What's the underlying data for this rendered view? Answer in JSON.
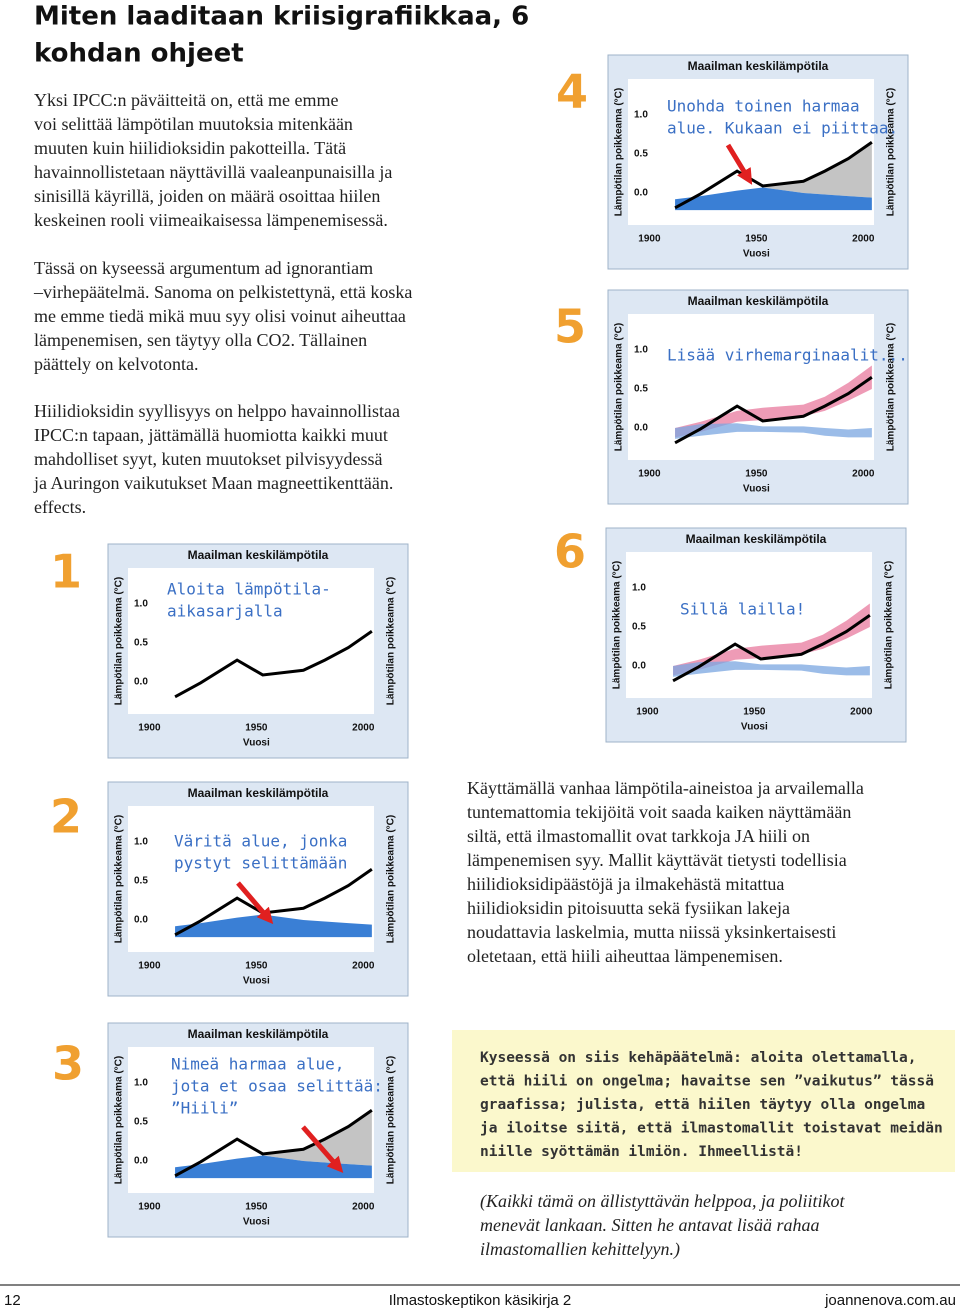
{
  "title": [
    "Miten laaditaan kriisigrafiikkaa, 6",
    "kohdan ohjeet"
  ],
  "paragraphs": [
    [
      "Yksi IPCC:n päväitteitä on, että me emme",
      "voi selittää lämpötilan muutoksia mitenkään",
      "muuten kuin hiilidioksidin pakotteilla. Tätä",
      "havainnollistetaan näyttävillä vaaleanpunaisilla ja",
      "sinisillä käyrillä, joiden on määrä osoittaa hiilen",
      "keskeinen rooli viimeaikaisessa lämpenemisessä."
    ],
    [
      "Tässä on kyseessä argumentum ad ignorantiam",
      "–virhepäätelmä. Sanoma on pelkistettynä, että koska",
      "me emme tiedä mikä muu syy olisi voinut aiheuttaa",
      "lämpenemisen, sen täytyy olla CO2. Tällainen",
      "päättely on kelvotonta."
    ],
    [
      "Hiilidioksidin syyllisyys on helppo havainnollistaa",
      "IPCC:n tapaan, jättämällä huomiotta kaikki muut",
      "mahdolliset syyt, kuten muutokset pilvisyydessä",
      "ja Auringon vaikutukset Maan magneettikenttään.",
      "effects."
    ],
    [
      "Käyttämällä vanhaa lämpötila-aineistoa ja arvailemalla",
      "tuntemattomia tekijöitä voit saada kaiken näyttämään",
      "siltä, että ilmastomallit ovat tarkkoja JA hiili on",
      "lämpenemisen syy. Mallit käyttävät tietysti todellisia",
      "hiilidioksidipäästöjä ja ilmakehästä mitattua",
      "hiilidioksidin pitoisuutta sekä fysiikan lakeja",
      "noudattavia laskelmia, mutta niissä yksinkertaisesti",
      "oletetaan, että hiili aiheuttaa lämpenemisen."
    ]
  ],
  "box": [
    "Kyseessä on siis kehäpäätelmä: aloita olettamalla,",
    "että hiili on ongelma; havaitse sen ”vaikutus” tässä",
    "graafissa; julista, että hiilen täytyy olla ongelma",
    "ja iloitse siitä, että ilmastomallit toistavat meidän",
    "niille syöttämän ilmiön. Ihmeellistä!"
  ],
  "note": [
    "(Kaikki tämä on ällistyttävän helppoa, ja poliitikot",
    "menevät lankaan. Sitten he antavat lisää rahaa",
    "ilmastomallien kehittelyyn.)"
  ],
  "panel_numbers": [
    "1",
    "2",
    "3",
    "4",
    "5",
    "6"
  ],
  "footer": {
    "page": "12",
    "book": "Ilmastoskeptikon käsikirja 2",
    "site": "joannenova.com.au"
  },
  "chart_data": [
    {
      "type": "line",
      "title": "Maailman keskilämpötila",
      "ylabel": "Lämpötilan poikkeama (°C)",
      "y2label": "Lämpötilan poikkeama (°C)",
      "xlabel": "Vuosi",
      "annotation": [
        "Aloita lämpötila-",
        "aikasarjalla"
      ],
      "x": [
        1912,
        1924,
        1941,
        1953,
        1972,
        1982,
        1993,
        2004
      ],
      "series": [
        {
          "color": "#000000",
          "values": [
            -0.19,
            -0.01,
            0.28,
            0.09,
            0.15,
            0.28,
            0.44,
            0.65
          ]
        }
      ],
      "bands": [],
      "xlim": [
        1890,
        2005
      ],
      "ylim": [
        -0.41,
        1.46
      ],
      "xticks": [
        1900,
        1950,
        2000
      ],
      "yticks": [
        {
          "value": 0,
          "label": "0.0"
        },
        0.5,
        {
          "value": 1,
          "label": "1.0"
        }
      ]
    },
    {
      "type": "line",
      "title": "Maailman keskilämpötila",
      "ylabel": "Lämpötilan poikkeama (°C)",
      "y2label": "Lämpötilan poikkeama (°C)",
      "xlabel": "Vuosi",
      "annotation": [
        "Väritä alue, jonka",
        "pystyt selittämään"
      ],
      "x": [
        1912,
        1924,
        1941,
        1953,
        1972,
        1982,
        1993,
        2004
      ],
      "series": [
        {
          "color": "#000000",
          "values": [
            -0.19,
            -0.01,
            0.28,
            0.09,
            0.15,
            0.28,
            0.44,
            0.65
          ]
        }
      ],
      "bands": [
        {
          "color": "#3a7fd5",
          "lower": [
            -0.22,
            -0.22,
            -0.22,
            -0.22,
            -0.22,
            -0.22,
            -0.22,
            -0.22
          ],
          "upper": [
            -0.08,
            -0.04,
            0.03,
            0.07,
            0.0,
            -0.02,
            -0.04,
            -0.06
          ]
        }
      ],
      "xlim": [
        1890,
        2005
      ],
      "ylim": [
        -0.41,
        1.46
      ],
      "xticks": [
        1900,
        1950,
        2000
      ],
      "yticks": [
        {
          "value": 0,
          "label": "0.0"
        },
        0.5,
        {
          "value": 1,
          "label": "1.0"
        }
      ]
    },
    {
      "type": "line",
      "title": "Maailman keskilämpötila",
      "ylabel": "Lämpötilan poikkeama (°C)",
      "y2label": "Lämpötilan poikkeama (°C)",
      "xlabel": "Vuosi",
      "annotation": [
        "Nimeä harmaa alue,",
        "jota et osaa selittää:",
        "”Hiili”"
      ],
      "x": [
        1912,
        1924,
        1941,
        1953,
        1972,
        1982,
        1993,
        2004
      ],
      "series": [
        {
          "color": "#000000",
          "values": [
            -0.19,
            -0.01,
            0.28,
            0.09,
            0.15,
            0.28,
            0.44,
            0.65
          ]
        }
      ],
      "bands": [
        {
          "color": "#c4c4c4",
          "lower": [
            null,
            null,
            null,
            0.07,
            0.0,
            -0.02,
            -0.04,
            -0.06
          ],
          "upper": [
            null,
            null,
            null,
            0.09,
            0.15,
            0.28,
            0.44,
            0.65
          ]
        },
        {
          "color": "#3a7fd5",
          "lower": [
            -0.22,
            -0.22,
            -0.22,
            -0.22,
            -0.22,
            -0.22,
            -0.22,
            -0.22
          ],
          "upper": [
            -0.08,
            -0.04,
            0.03,
            0.07,
            0.0,
            -0.02,
            -0.04,
            -0.06
          ]
        }
      ],
      "xlim": [
        1890,
        2005
      ],
      "ylim": [
        -0.41,
        1.46
      ],
      "xticks": [
        1900,
        1950,
        2000
      ],
      "yticks": [
        {
          "value": 0,
          "label": "0.0"
        },
        0.5,
        {
          "value": 1,
          "label": "1.0"
        }
      ]
    },
    {
      "type": "line",
      "title": "Maailman keskilämpötila",
      "ylabel": "Lämpötilan poikkeama (°C)",
      "y2label": "Lämpötilan poikkeama (°C)",
      "xlabel": "Vuosi",
      "annotation": [
        "Unohda toinen harmaa",
        "alue. Kukaan ei piittaa."
      ],
      "x": [
        1912,
        1924,
        1941,
        1953,
        1972,
        1982,
        1993,
        2004
      ],
      "series": [
        {
          "color": "#000000",
          "values": [
            -0.19,
            -0.01,
            0.28,
            0.09,
            0.15,
            0.28,
            0.44,
            0.65
          ]
        }
      ],
      "bands": [
        {
          "color": "#c4c4c4",
          "lower": [
            null,
            null,
            null,
            0.07,
            0.0,
            -0.02,
            -0.04,
            -0.06
          ],
          "upper": [
            null,
            null,
            null,
            0.09,
            0.15,
            0.28,
            0.44,
            0.65
          ]
        },
        {
          "color": "#3a7fd5",
          "lower": [
            -0.22,
            -0.22,
            -0.22,
            -0.22,
            -0.22,
            -0.22,
            -0.22,
            -0.22
          ],
          "upper": [
            -0.08,
            -0.04,
            0.03,
            0.07,
            0.0,
            -0.02,
            -0.04,
            -0.06
          ]
        }
      ],
      "xlim": [
        1890,
        2005
      ],
      "ylim": [
        -0.41,
        1.46
      ],
      "xticks": [
        1900,
        1950,
        2000
      ],
      "yticks": [
        {
          "value": 0,
          "label": "0.0"
        },
        0.5,
        {
          "value": 1,
          "label": "1.0"
        }
      ]
    },
    {
      "type": "line",
      "title": "Maailman keskilämpötila",
      "ylabel": "Lämpötilan poikkeama (°C)",
      "y2label": "Lämpötilan poikkeama (°C)",
      "xlabel": "Vuosi",
      "annotation": [
        "Lisää virhemarginaalit..."
      ],
      "x": [
        1912,
        1924,
        1941,
        1953,
        1972,
        1982,
        1993,
        2004
      ],
      "series": [
        {
          "color": "#000000",
          "values": [
            -0.19,
            -0.01,
            0.28,
            0.09,
            0.15,
            0.28,
            0.44,
            0.65
          ]
        }
      ],
      "bands": [
        {
          "color": "#e8799e",
          "lower": [
            -0.12,
            -0.05,
            0.08,
            0.1,
            0.15,
            0.22,
            0.35,
            0.5
          ],
          "upper": [
            0.0,
            0.08,
            0.22,
            0.26,
            0.3,
            0.4,
            0.58,
            0.8
          ]
        },
        {
          "color": "#7aa6e0",
          "lower": [
            -0.14,
            -0.1,
            -0.05,
            -0.05,
            -0.06,
            -0.1,
            -0.12,
            -0.12
          ],
          "upper": [
            0.0,
            0.05,
            0.06,
            0.02,
            0.02,
            0.0,
            -0.02,
            0.0
          ]
        }
      ],
      "xlim": [
        1890,
        2005
      ],
      "ylim": [
        -0.41,
        1.46
      ],
      "xticks": [
        1900,
        1950,
        2000
      ],
      "yticks": [
        {
          "value": 0,
          "label": "0.0"
        },
        0.5,
        {
          "value": 1,
          "label": "1.0"
        }
      ]
    },
    {
      "type": "line",
      "title": "Maailman keskilämpötila",
      "ylabel": "Lämpötilan poikkeama (°C)",
      "y2label": "Lämpötilan poikkeama (°C)",
      "xlabel": "Vuosi",
      "annotation": [
        "Sillä lailla!"
      ],
      "x": [
        1912,
        1924,
        1941,
        1953,
        1972,
        1982,
        1993,
        2004
      ],
      "series": [
        {
          "color": "#000000",
          "values": [
            -0.19,
            -0.01,
            0.28,
            0.09,
            0.15,
            0.28,
            0.44,
            0.65
          ]
        }
      ],
      "bands": [
        {
          "color": "#e8799e",
          "lower": [
            -0.12,
            -0.05,
            0.08,
            0.1,
            0.15,
            0.22,
            0.35,
            0.5
          ],
          "upper": [
            0.0,
            0.08,
            0.22,
            0.26,
            0.3,
            0.4,
            0.58,
            0.8
          ]
        },
        {
          "color": "#7aa6e0",
          "lower": [
            -0.14,
            -0.1,
            -0.05,
            -0.05,
            -0.06,
            -0.1,
            -0.12,
            -0.12
          ],
          "upper": [
            0.0,
            0.05,
            0.06,
            0.02,
            0.02,
            0.0,
            -0.02,
            0.0
          ]
        }
      ],
      "xlim": [
        1890,
        2005
      ],
      "ylim": [
        -0.41,
        1.46
      ],
      "xticks": [
        1900,
        1950,
        2000
      ],
      "yticks": [
        {
          "value": 0,
          "label": "0.0"
        },
        0.5,
        {
          "value": 1,
          "label": "1.0"
        }
      ]
    }
  ]
}
